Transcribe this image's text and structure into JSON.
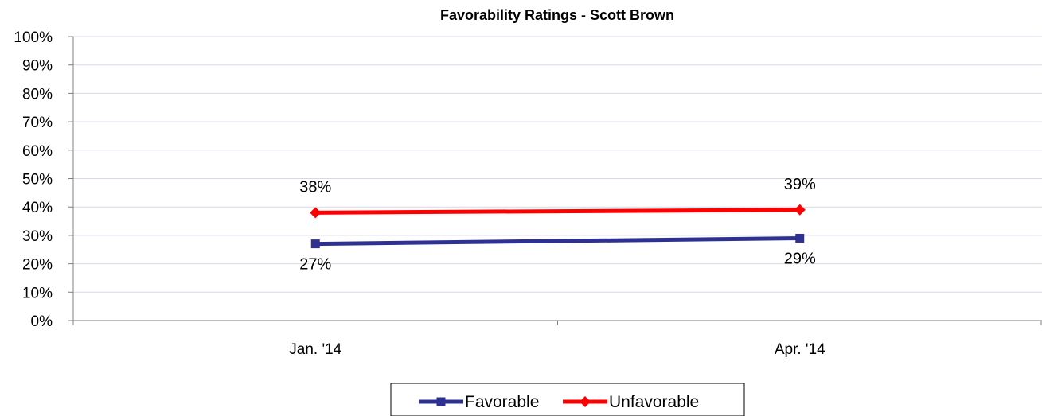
{
  "chart_data": {
    "type": "line",
    "title": "Favorability Ratings - Scott Brown",
    "xlabel": "",
    "ylabel": "",
    "categories": [
      "Jan. '14",
      "Apr. '14"
    ],
    "ylim": [
      0,
      100
    ],
    "yticks": [
      0,
      10,
      20,
      30,
      40,
      50,
      60,
      70,
      80,
      90,
      100
    ],
    "ytick_labels": [
      "0%",
      "10%",
      "20%",
      "30%",
      "40%",
      "50%",
      "60%",
      "70%",
      "80%",
      "90%",
      "100%"
    ],
    "grid": true,
    "legend": "bottom",
    "series": [
      {
        "name": "Favorable",
        "values": [
          27,
          29
        ],
        "labels": [
          "27%",
          "29%"
        ],
        "color": "#2E3192",
        "marker": "square",
        "label_position": "below"
      },
      {
        "name": "Unfavorable",
        "values": [
          38,
          39
        ],
        "labels": [
          "38%",
          "39%"
        ],
        "color": "#FF0000",
        "marker": "diamond",
        "label_position": "above"
      }
    ]
  }
}
